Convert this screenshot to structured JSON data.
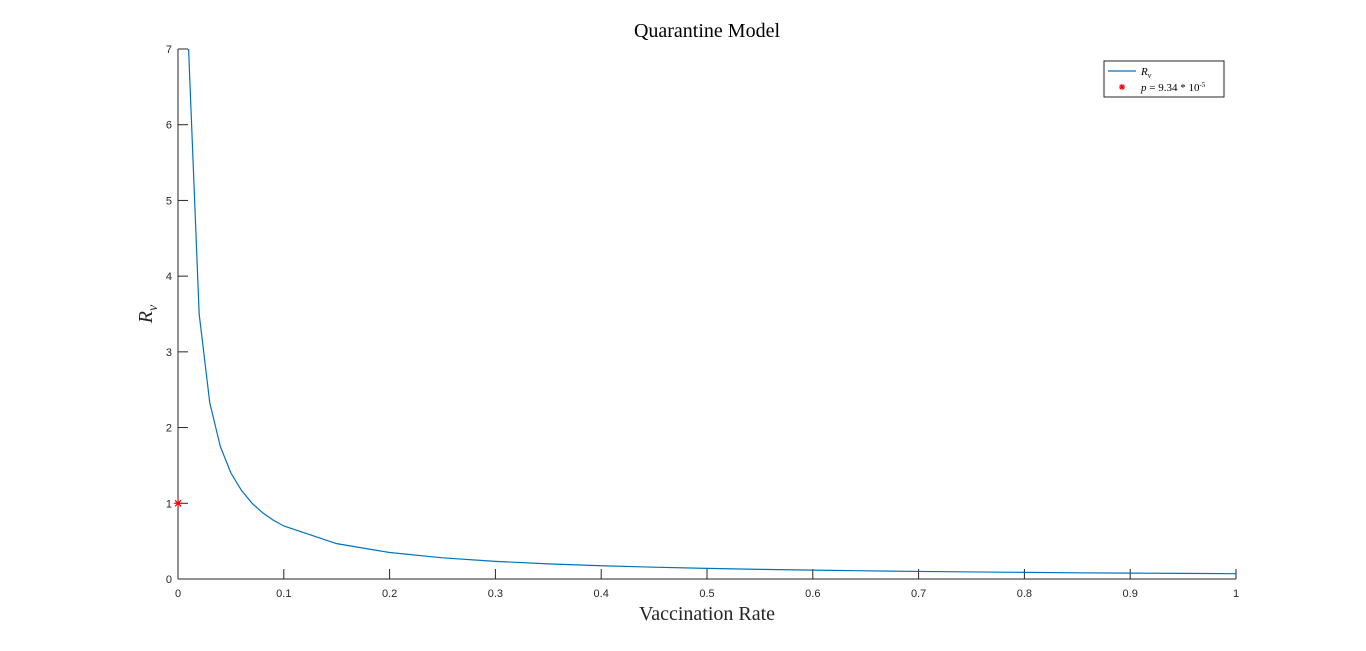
{
  "chart_data": {
    "type": "line",
    "title": "Quarantine Model",
    "xlabel": "Vaccination Rate",
    "ylabel": {
      "symbol": "R",
      "subscript": "v"
    },
    "xlim": [
      0,
      1
    ],
    "ylim": [
      0,
      7
    ],
    "xticks": [
      0,
      0.1,
      0.2,
      0.3,
      0.4,
      0.5,
      0.6,
      0.7,
      0.8,
      0.9,
      1
    ],
    "xtick_labels": [
      "0",
      "0.1",
      "0.2",
      "0.3",
      "0.4",
      "0.5",
      "0.6",
      "0.7",
      "0.8",
      "0.9",
      "1"
    ],
    "yticks": [
      0,
      1,
      2,
      3,
      4,
      5,
      6,
      7
    ],
    "ytick_labels": [
      "0",
      "1",
      "2",
      "3",
      "4",
      "5",
      "6",
      "7"
    ],
    "grid": false,
    "legend_position": "top-right",
    "series": [
      {
        "name": "R_v",
        "legend_label": {
          "symbol": "R",
          "subscript": "v"
        },
        "kind": "line",
        "color": "#0072BD",
        "x": [
          0.01,
          0.02,
          0.03,
          0.04,
          0.05,
          0.06,
          0.07,
          0.08,
          0.09,
          0.1,
          0.15,
          0.2,
          0.25,
          0.3,
          0.35,
          0.4,
          0.45,
          0.5,
          0.55,
          0.6,
          0.65,
          0.7,
          0.75,
          0.8,
          0.85,
          0.9,
          0.95,
          1.0
        ],
        "y": [
          7.0,
          3.5,
          2.33,
          1.75,
          1.4,
          1.17,
          1.0,
          0.875,
          0.778,
          0.7,
          0.467,
          0.35,
          0.28,
          0.233,
          0.2,
          0.175,
          0.156,
          0.14,
          0.127,
          0.117,
          0.108,
          0.1,
          0.093,
          0.0875,
          0.082,
          0.078,
          0.074,
          0.07
        ]
      },
      {
        "name": "p",
        "legend_label": {
          "lhs": "p",
          "rhs": "9.34 * 10",
          "exponent": "-5"
        },
        "kind": "marker",
        "marker": "asterisk",
        "color": "#FF0000",
        "x": [
          9.34e-05
        ],
        "y": [
          1
        ]
      }
    ]
  }
}
